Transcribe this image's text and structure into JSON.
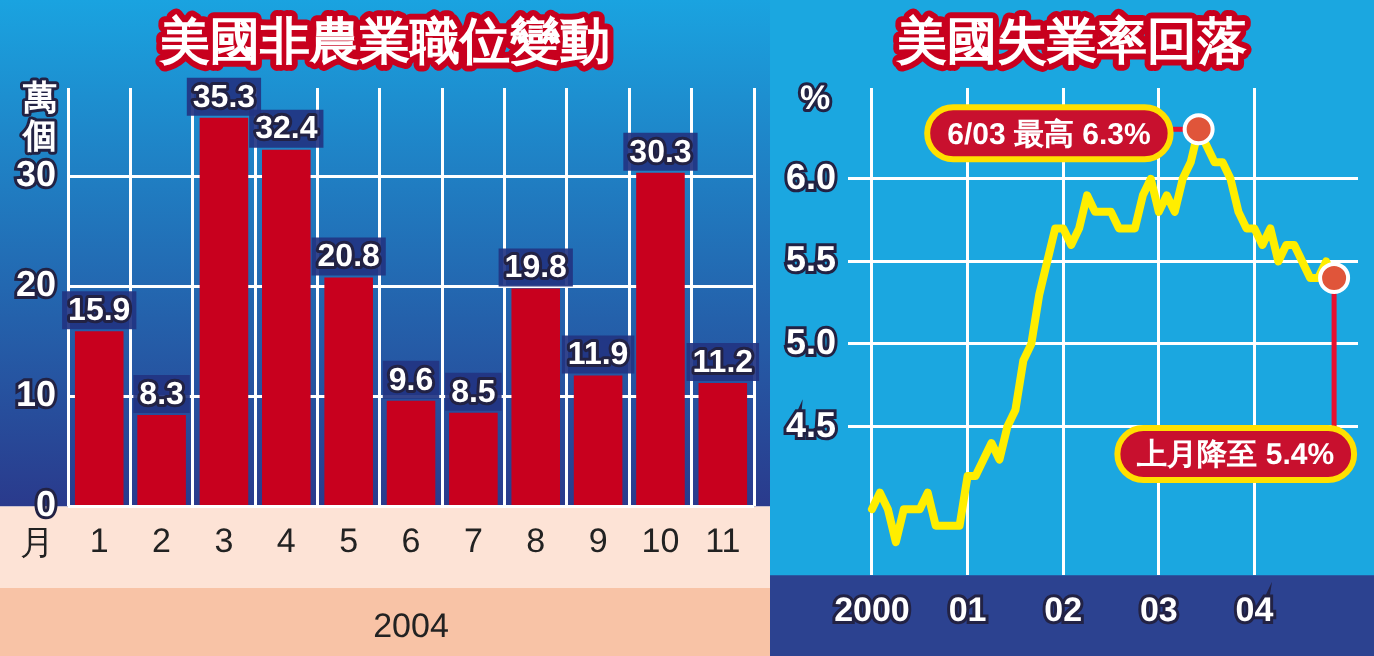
{
  "chart_data": [
    {
      "type": "bar",
      "title": "美國非農業職位變動",
      "ylabel": "萬個",
      "xlabel": "2004",
      "categories": [
        "1",
        "2",
        "3",
        "4",
        "5",
        "6",
        "7",
        "8",
        "9",
        "10",
        "11"
      ],
      "values": [
        15.9,
        8.3,
        35.3,
        32.4,
        20.8,
        9.6,
        8.5,
        19.8,
        11.9,
        30.3,
        11.2
      ],
      "color": "#c8001e",
      "ylim": [
        0,
        38
      ],
      "yticks": [
        0,
        10,
        20,
        30
      ],
      "grid": true,
      "data_labels": true,
      "annotations": [
        "月"
      ]
    },
    {
      "type": "line",
      "title": "美國失業率回落",
      "ylabel": "%",
      "x": [
        "2000-01",
        "2000-02",
        "2000-03",
        "2000-04",
        "2000-05",
        "2000-06",
        "2000-07",
        "2000-08",
        "2000-09",
        "2000-10",
        "2000-11",
        "2000-12",
        "2001-01",
        "2001-02",
        "2001-03",
        "2001-04",
        "2001-05",
        "2001-06",
        "2001-07",
        "2001-08",
        "2001-09",
        "2001-10",
        "2001-11",
        "2001-12",
        "2002-01",
        "2002-02",
        "2002-03",
        "2002-04",
        "2002-05",
        "2002-06",
        "2002-07",
        "2002-08",
        "2002-09",
        "2002-10",
        "2002-11",
        "2002-12",
        "2003-01",
        "2003-02",
        "2003-03",
        "2003-04",
        "2003-05",
        "2003-06",
        "2003-07",
        "2003-08",
        "2003-09",
        "2003-10",
        "2003-11",
        "2003-12",
        "2004-01",
        "2004-02",
        "2004-03",
        "2004-04",
        "2004-05",
        "2004-06",
        "2004-07",
        "2004-08",
        "2004-09",
        "2004-10",
        "2004-11"
      ],
      "series": [
        {
          "color": "#ffee00",
          "values": [
            4.0,
            4.1,
            4.0,
            3.8,
            4.0,
            4.0,
            4.0,
            4.1,
            3.9,
            3.9,
            3.9,
            3.9,
            4.2,
            4.2,
            4.3,
            4.4,
            4.3,
            4.5,
            4.6,
            4.9,
            5.0,
            5.3,
            5.5,
            5.7,
            5.7,
            5.6,
            5.7,
            5.9,
            5.8,
            5.8,
            5.8,
            5.7,
            5.7,
            5.7,
            5.9,
            6.0,
            5.8,
            5.9,
            5.8,
            6.0,
            6.1,
            6.3,
            6.2,
            6.1,
            6.1,
            6.0,
            5.8,
            5.7,
            5.7,
            5.6,
            5.7,
            5.5,
            5.6,
            5.6,
            5.5,
            5.4,
            5.4,
            5.5,
            5.4
          ]
        }
      ],
      "xlim": [
        "1999-10",
        "2005-02"
      ],
      "xticks": [
        {
          "value": "2000-01",
          "label": "2000"
        },
        {
          "value": "2001-01",
          "label": "01"
        },
        {
          "value": "2002-01",
          "label": "02"
        },
        {
          "value": "2003-01",
          "label": "03"
        },
        {
          "value": "2004-01",
          "label": "04"
        }
      ],
      "ylim": [
        3.6,
        6.55
      ],
      "yticks": [
        {
          "value": 4.5,
          "label": "4.5"
        },
        {
          "value": 5,
          "label": "5.0"
        },
        {
          "value": 5.5,
          "label": "5.5"
        },
        {
          "value": 6,
          "label": "6.0"
        }
      ],
      "grid": true,
      "marker": "none",
      "line_style": "solid",
      "annotations": [
        {
          "text": "6/03 最高 6.3%",
          "x": "2003-06",
          "y": 6.3
        },
        {
          "text": "上月降至 5.4%",
          "x": "2004-11",
          "y": 5.4
        }
      ]
    }
  ]
}
